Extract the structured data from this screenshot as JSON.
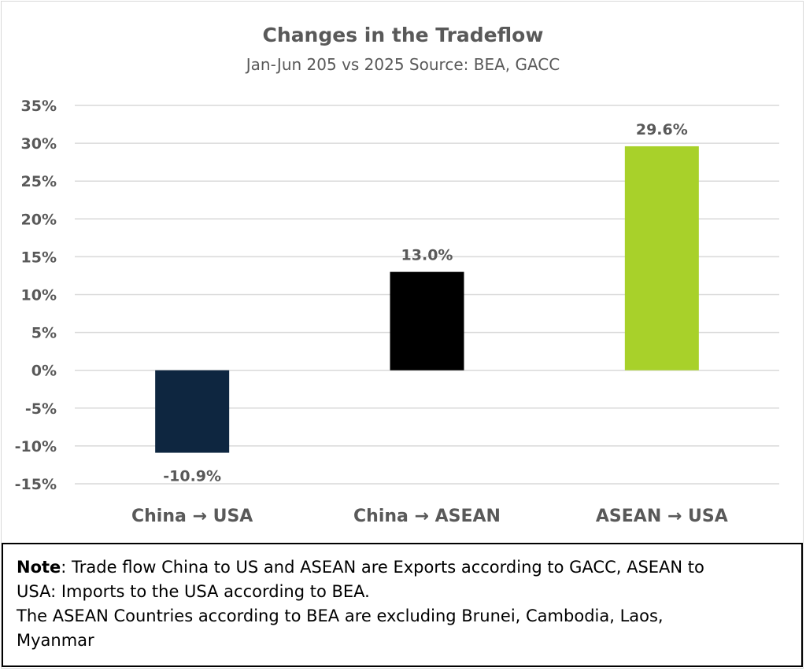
{
  "chart_data": {
    "type": "bar",
    "title": "Changes in the Tradeflow",
    "subtitle": "Jan-Jun 205 vs 2025 Source: BEA, GACC",
    "categories": [
      "China → USA",
      "China → ASEAN",
      "ASEAN → USA"
    ],
    "values": [
      -10.9,
      13.0,
      29.6
    ],
    "data_labels": [
      "-10.9%",
      "13.0%",
      "29.6%"
    ],
    "bar_colors": [
      "#0e2640",
      "#000000",
      "#a8d12a"
    ],
    "unit": "%",
    "ylim": [
      -15,
      35
    ],
    "ytick_step": 5,
    "yticks": [
      35,
      30,
      25,
      20,
      15,
      10,
      5,
      0,
      -5,
      -10,
      -15
    ],
    "ytick_labels": [
      "35%",
      "30%",
      "25%",
      "20%",
      "15%",
      "10%",
      "5%",
      "0%",
      "-5%",
      "-10%",
      "-15%"
    ],
    "grid": true,
    "legend": "none",
    "xlabel": "",
    "ylabel": ""
  },
  "note": {
    "label": "Note",
    "line1_rest": ": Trade flow China to US and ASEAN are Exports according to GACC, ASEAN to",
    "line2": "USA: Imports to the USA according to BEA.",
    "line3": "The ASEAN Countries according to BEA are excluding Brunei, Cambodia, Laos,",
    "line4": "Myanmar"
  },
  "colors": {
    "grid": "#d9d9d9",
    "text": "#595959",
    "title": "#595959"
  }
}
